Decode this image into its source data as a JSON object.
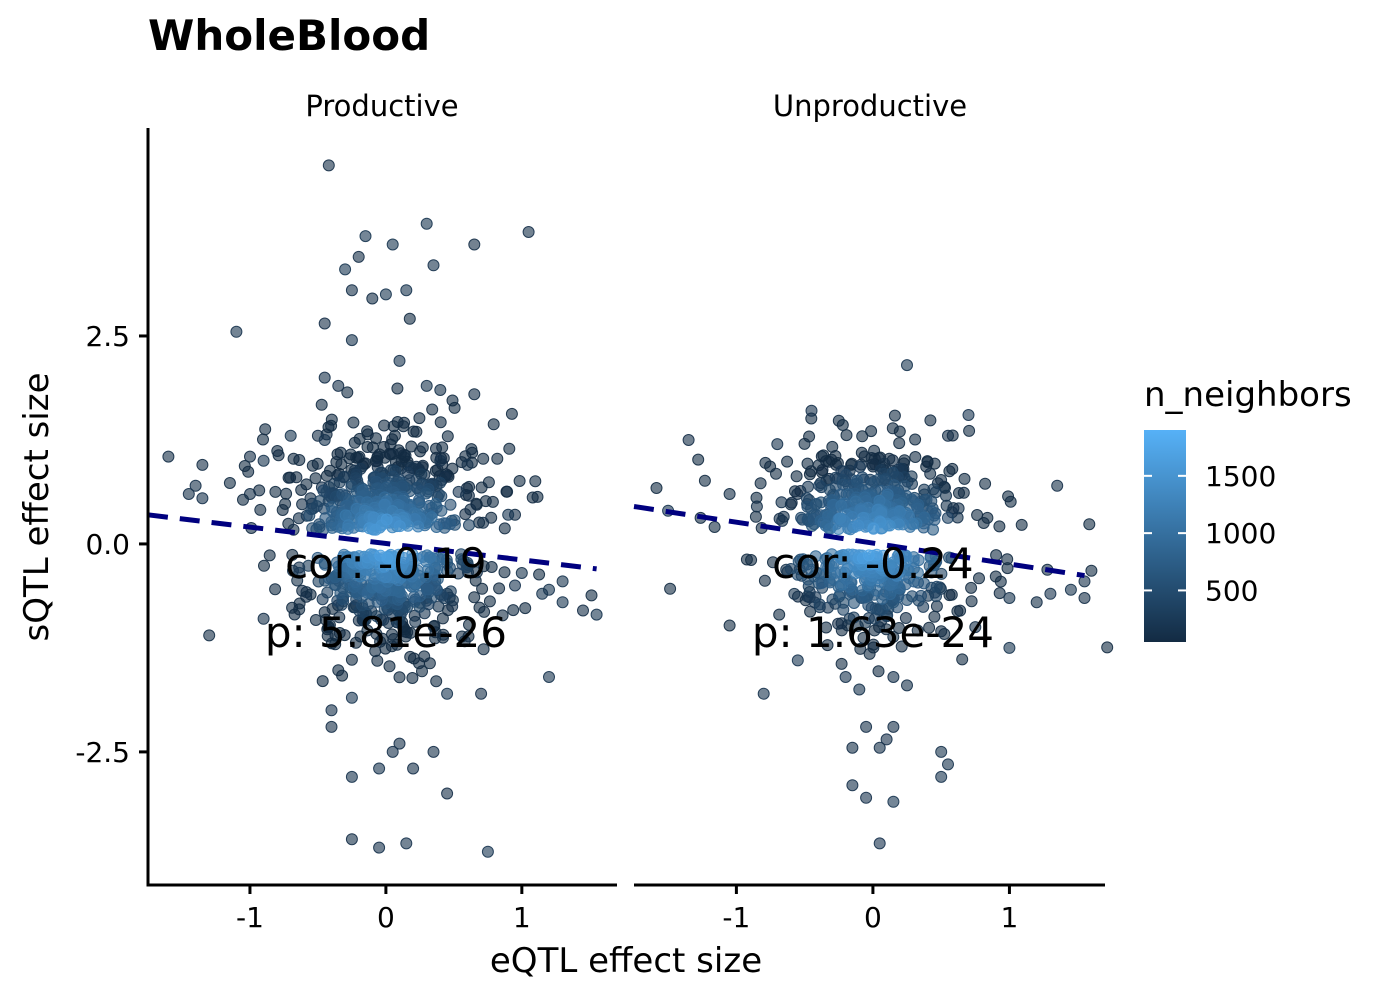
{
  "chart_data": {
    "type": "scatter",
    "title": "WholeBlood",
    "xlabel": "eQTL effect size",
    "ylabel": "sQTL effect size",
    "xlim": [
      -1.75,
      1.7
    ],
    "ylim": [
      -4.1,
      5.0
    ],
    "xticks": [
      -1,
      0,
      1
    ],
    "xtick_labels": [
      "-1",
      "0",
      "1"
    ],
    "yticks": [
      -2.5,
      0.0,
      2.5
    ],
    "ytick_labels": [
      "-2.5",
      "0.0",
      "2.5"
    ],
    "grid": false,
    "legend": {
      "title": "n_neighbors",
      "placement": "right",
      "min": 50,
      "max": 1900,
      "ticks": [
        500,
        1000,
        1500
      ],
      "tick_labels": [
        "500",
        "1000",
        "1500"
      ],
      "color_low": "#132B43",
      "color_high": "#56B1F7"
    },
    "colors": {
      "fit_line": "#00007F",
      "point_alpha": 0.6
    },
    "panels": [
      {
        "name": "Productive",
        "cor_text": "cor: -0.19",
        "p_text": "p: 5.81e-26",
        "fit": {
          "x": [
            -1.75,
            1.55
          ],
          "y": [
            0.35,
            -0.3
          ]
        },
        "cluster": {
          "n": 900,
          "seed": 11
        },
        "points": [
          [
            -0.42,
            4.55
          ],
          [
            0.3,
            3.85
          ],
          [
            1.05,
            3.75
          ],
          [
            0.05,
            3.6
          ],
          [
            0.65,
            3.6
          ],
          [
            -0.15,
            3.7
          ],
          [
            -0.2,
            3.45
          ],
          [
            -0.3,
            3.3
          ],
          [
            0.35,
            3.35
          ],
          [
            -0.25,
            3.05
          ],
          [
            0.0,
            3.0
          ],
          [
            0.15,
            3.05
          ],
          [
            -0.1,
            2.95
          ],
          [
            -0.45,
            2.65
          ],
          [
            -1.1,
            2.55
          ],
          [
            -0.25,
            2.45
          ],
          [
            -0.45,
            2.0
          ],
          [
            0.1,
            2.2
          ],
          [
            -0.35,
            1.9
          ],
          [
            0.4,
            1.85
          ],
          [
            0.65,
            1.8
          ],
          [
            0.3,
            1.9
          ],
          [
            -0.5,
            1.3
          ],
          [
            -0.45,
            1.25
          ],
          [
            -0.7,
            1.3
          ],
          [
            -1.6,
            1.05
          ],
          [
            -1.35,
            0.95
          ],
          [
            -1.0,
            1.05
          ],
          [
            -0.9,
            1.0
          ],
          [
            0.4,
            1.0
          ],
          [
            0.6,
            0.95
          ],
          [
            -1.4,
            0.7
          ],
          [
            -1.45,
            0.6
          ],
          [
            -1.35,
            0.55
          ],
          [
            -1.0,
            0.6
          ],
          [
            0.95,
            0.35
          ],
          [
            0.9,
            0.35
          ],
          [
            -1.3,
            -1.1
          ],
          [
            -0.9,
            -0.9
          ],
          [
            0.45,
            -0.6
          ],
          [
            1.15,
            -0.6
          ],
          [
            1.3,
            -0.7
          ],
          [
            1.45,
            -0.8
          ],
          [
            1.55,
            -0.85
          ],
          [
            1.2,
            -0.55
          ],
          [
            1.3,
            -0.45
          ],
          [
            0.95,
            -0.5
          ],
          [
            1.0,
            -0.35
          ],
          [
            1.2,
            -1.6
          ],
          [
            0.7,
            -1.8
          ],
          [
            0.45,
            -1.8
          ],
          [
            -0.25,
            -1.85
          ],
          [
            -0.4,
            -2.2
          ],
          [
            -0.4,
            -2.0
          ],
          [
            0.1,
            -2.4
          ],
          [
            0.35,
            -2.5
          ],
          [
            0.05,
            -2.5
          ],
          [
            -0.05,
            -2.7
          ],
          [
            0.2,
            -2.7
          ],
          [
            -0.25,
            -2.8
          ],
          [
            0.45,
            -3.0
          ],
          [
            -0.25,
            -3.55
          ],
          [
            0.15,
            -3.6
          ],
          [
            -0.05,
            -3.65
          ],
          [
            0.75,
            -3.7
          ]
        ]
      },
      {
        "name": "Unproductive",
        "cor_text": "cor: -0.24",
        "p_text": "p: 1.63e-24",
        "fit": {
          "x": [
            -1.75,
            1.55
          ],
          "y": [
            0.45,
            -0.38
          ]
        },
        "cluster": {
          "n": 700,
          "seed": 29
        },
        "points": [
          [
            0.25,
            2.15
          ],
          [
            -0.45,
            1.6
          ],
          [
            0.7,
            1.55
          ],
          [
            0.55,
            1.3
          ],
          [
            -1.35,
            1.25
          ],
          [
            -0.7,
            1.2
          ],
          [
            -1.5,
            0.4
          ],
          [
            -1.05,
            0.6
          ],
          [
            -0.85,
            0.45
          ],
          [
            1.35,
            0.7
          ],
          [
            1.55,
            -0.45
          ],
          [
            1.55,
            -0.65
          ],
          [
            1.45,
            -0.55
          ],
          [
            1.3,
            -0.6
          ],
          [
            1.2,
            -0.7
          ],
          [
            1.0,
            -0.65
          ],
          [
            1.0,
            -1.25
          ],
          [
            0.75,
            -1.0
          ],
          [
            -0.55,
            -1.4
          ],
          [
            -0.8,
            -1.8
          ],
          [
            -0.2,
            -1.6
          ],
          [
            -0.1,
            -1.75
          ],
          [
            0.15,
            -1.6
          ],
          [
            0.25,
            -1.7
          ],
          [
            -0.05,
            -2.2
          ],
          [
            0.1,
            -2.35
          ],
          [
            0.15,
            -2.2
          ],
          [
            -0.15,
            -2.45
          ],
          [
            0.05,
            -2.45
          ],
          [
            0.5,
            -2.5
          ],
          [
            0.55,
            -2.65
          ],
          [
            0.5,
            -2.8
          ],
          [
            -0.15,
            -2.9
          ],
          [
            -0.05,
            -3.05
          ],
          [
            0.15,
            -3.1
          ],
          [
            0.05,
            -3.6
          ]
        ]
      }
    ]
  }
}
